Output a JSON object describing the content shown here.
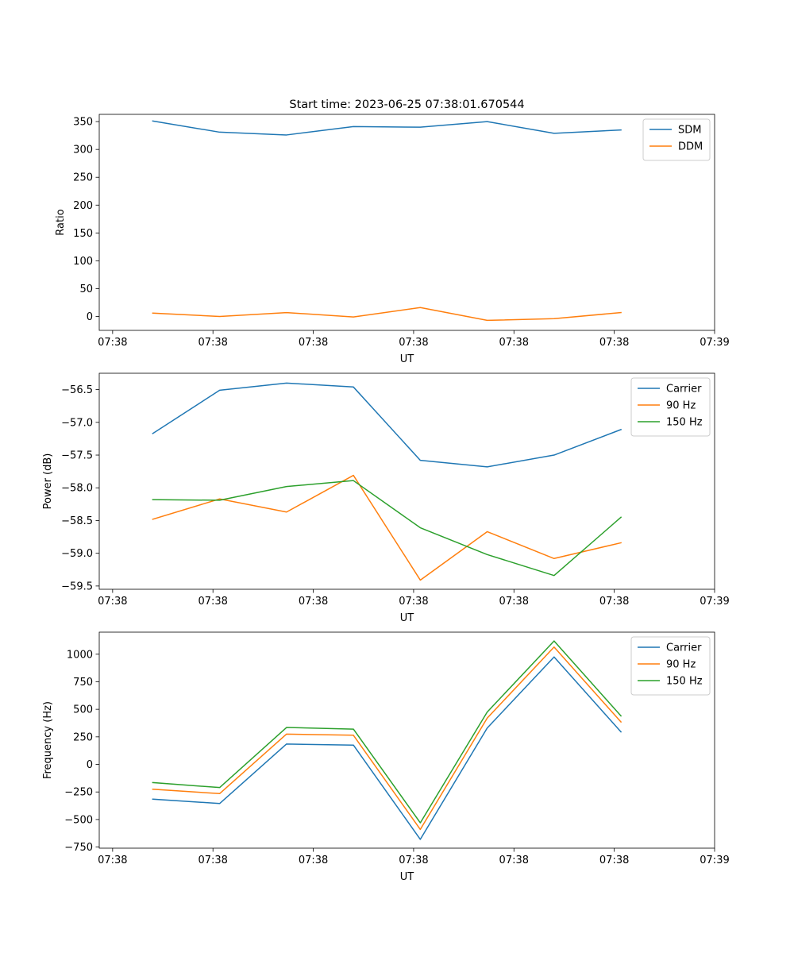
{
  "figure": {
    "title": "Start time: 2023-06-25 07:38:01.670544"
  },
  "colors": {
    "blue": "#1f77b4",
    "orange": "#ff7f0e",
    "green": "#2ca02c"
  },
  "chart_data": [
    {
      "type": "line",
      "title": "Start time: 2023-06-25 07:38:01.670544",
      "xlabel": "UT",
      "ylabel": "Ratio",
      "x": [
        1,
        2,
        3,
        4,
        5,
        6,
        7,
        8
      ],
      "xlim": [
        0.2,
        9.4
      ],
      "x_ticks": [
        0.4,
        1.9,
        3.4,
        4.9,
        6.4,
        7.9,
        9.4
      ],
      "x_tick_labels": [
        "07:38",
        "07:38",
        "07:38",
        "07:38",
        "07:38",
        "07:38",
        "07:39"
      ],
      "ylim": [
        -25,
        363
      ],
      "y_ticks": [
        0,
        50,
        100,
        150,
        200,
        250,
        300,
        350
      ],
      "y_tick_labels": [
        "0",
        "50",
        "100",
        "150",
        "200",
        "250",
        "300",
        "350"
      ],
      "legend": "upper right",
      "grid": false,
      "series": [
        {
          "name": "SDM",
          "color": "#1f77b4",
          "values": [
            351,
            331,
            326,
            341,
            340,
            350,
            329,
            335
          ]
        },
        {
          "name": "DDM",
          "color": "#ff7f0e",
          "values": [
            6,
            0,
            7,
            -1,
            16,
            -7,
            -4,
            7
          ]
        }
      ]
    },
    {
      "type": "line",
      "xlabel": "UT",
      "ylabel": "Power (dB)",
      "x": [
        1,
        2,
        3,
        4,
        5,
        6,
        7,
        8
      ],
      "xlim": [
        0.2,
        9.4
      ],
      "x_ticks": [
        0.4,
        1.9,
        3.4,
        4.9,
        6.4,
        7.9,
        9.4
      ],
      "x_tick_labels": [
        "07:38",
        "07:38",
        "07:38",
        "07:38",
        "07:38",
        "07:38",
        "07:39"
      ],
      "ylim": [
        -59.55,
        -56.25
      ],
      "y_ticks": [
        -59.5,
        -59.0,
        -58.5,
        -58.0,
        -57.5,
        -57.0,
        -56.5
      ],
      "y_tick_labels": [
        "−59.5",
        "−59.0",
        "−58.5",
        "−58.0",
        "−57.5",
        "−57.0",
        "−56.5"
      ],
      "legend": "upper right",
      "grid": false,
      "series": [
        {
          "name": "Carrier",
          "color": "#1f77b4",
          "values": [
            -57.17,
            -56.51,
            -56.4,
            -56.46,
            -57.58,
            -57.68,
            -57.5,
            -57.11
          ]
        },
        {
          "name": "90 Hz",
          "color": "#ff7f0e",
          "values": [
            -58.48,
            -58.17,
            -58.37,
            -57.81,
            -59.41,
            -58.67,
            -59.08,
            -58.84
          ]
        },
        {
          "name": "150 Hz",
          "color": "#2ca02c",
          "values": [
            -58.18,
            -58.19,
            -57.98,
            -57.89,
            -58.61,
            -59.02,
            -59.34,
            -58.45
          ]
        }
      ]
    },
    {
      "type": "line",
      "xlabel": "UT",
      "ylabel": "Frequency (Hz)",
      "x": [
        1,
        2,
        3,
        4,
        5,
        6,
        7,
        8
      ],
      "xlim": [
        0.2,
        9.4
      ],
      "x_ticks": [
        0.4,
        1.9,
        3.4,
        4.9,
        6.4,
        7.9,
        9.4
      ],
      "x_tick_labels": [
        "07:38",
        "07:38",
        "07:38",
        "07:38",
        "07:38",
        "07:38",
        "07:39"
      ],
      "ylim": [
        -760,
        1200
      ],
      "y_ticks": [
        -750,
        -500,
        -250,
        0,
        250,
        500,
        750,
        1000
      ],
      "y_tick_labels": [
        "−750",
        "−500",
        "−250",
        "0",
        "250",
        "500",
        "750",
        "1000"
      ],
      "legend": "upper right",
      "grid": false,
      "series": [
        {
          "name": "Carrier",
          "color": "#1f77b4",
          "values": [
            -315,
            -355,
            185,
            175,
            -680,
            330,
            975,
            295
          ]
        },
        {
          "name": "90 Hz",
          "color": "#ff7f0e",
          "values": [
            -225,
            -265,
            275,
            265,
            -590,
            420,
            1065,
            385
          ]
        },
        {
          "name": "150 Hz",
          "color": "#2ca02c",
          "values": [
            -165,
            -210,
            335,
            320,
            -530,
            475,
            1120,
            440
          ]
        }
      ]
    }
  ]
}
